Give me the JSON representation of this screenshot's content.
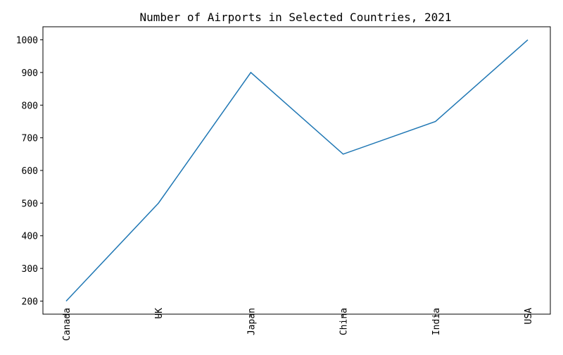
{
  "chart_data": {
    "type": "line",
    "title": "Number of Airports in Selected Countries, 2021",
    "xlabel": "",
    "ylabel": "",
    "categories": [
      "Canada",
      "UK",
      "Japan",
      "China",
      "India",
      "USA"
    ],
    "series": [
      {
        "values": [
          200,
          500,
          900,
          650,
          750,
          1000
        ],
        "color": "#1f77b4"
      }
    ],
    "yticks": [
      200,
      300,
      400,
      500,
      600,
      700,
      800,
      900,
      1000
    ],
    "ylim": [
      160,
      1040
    ],
    "grid": false,
    "legend": "none"
  }
}
